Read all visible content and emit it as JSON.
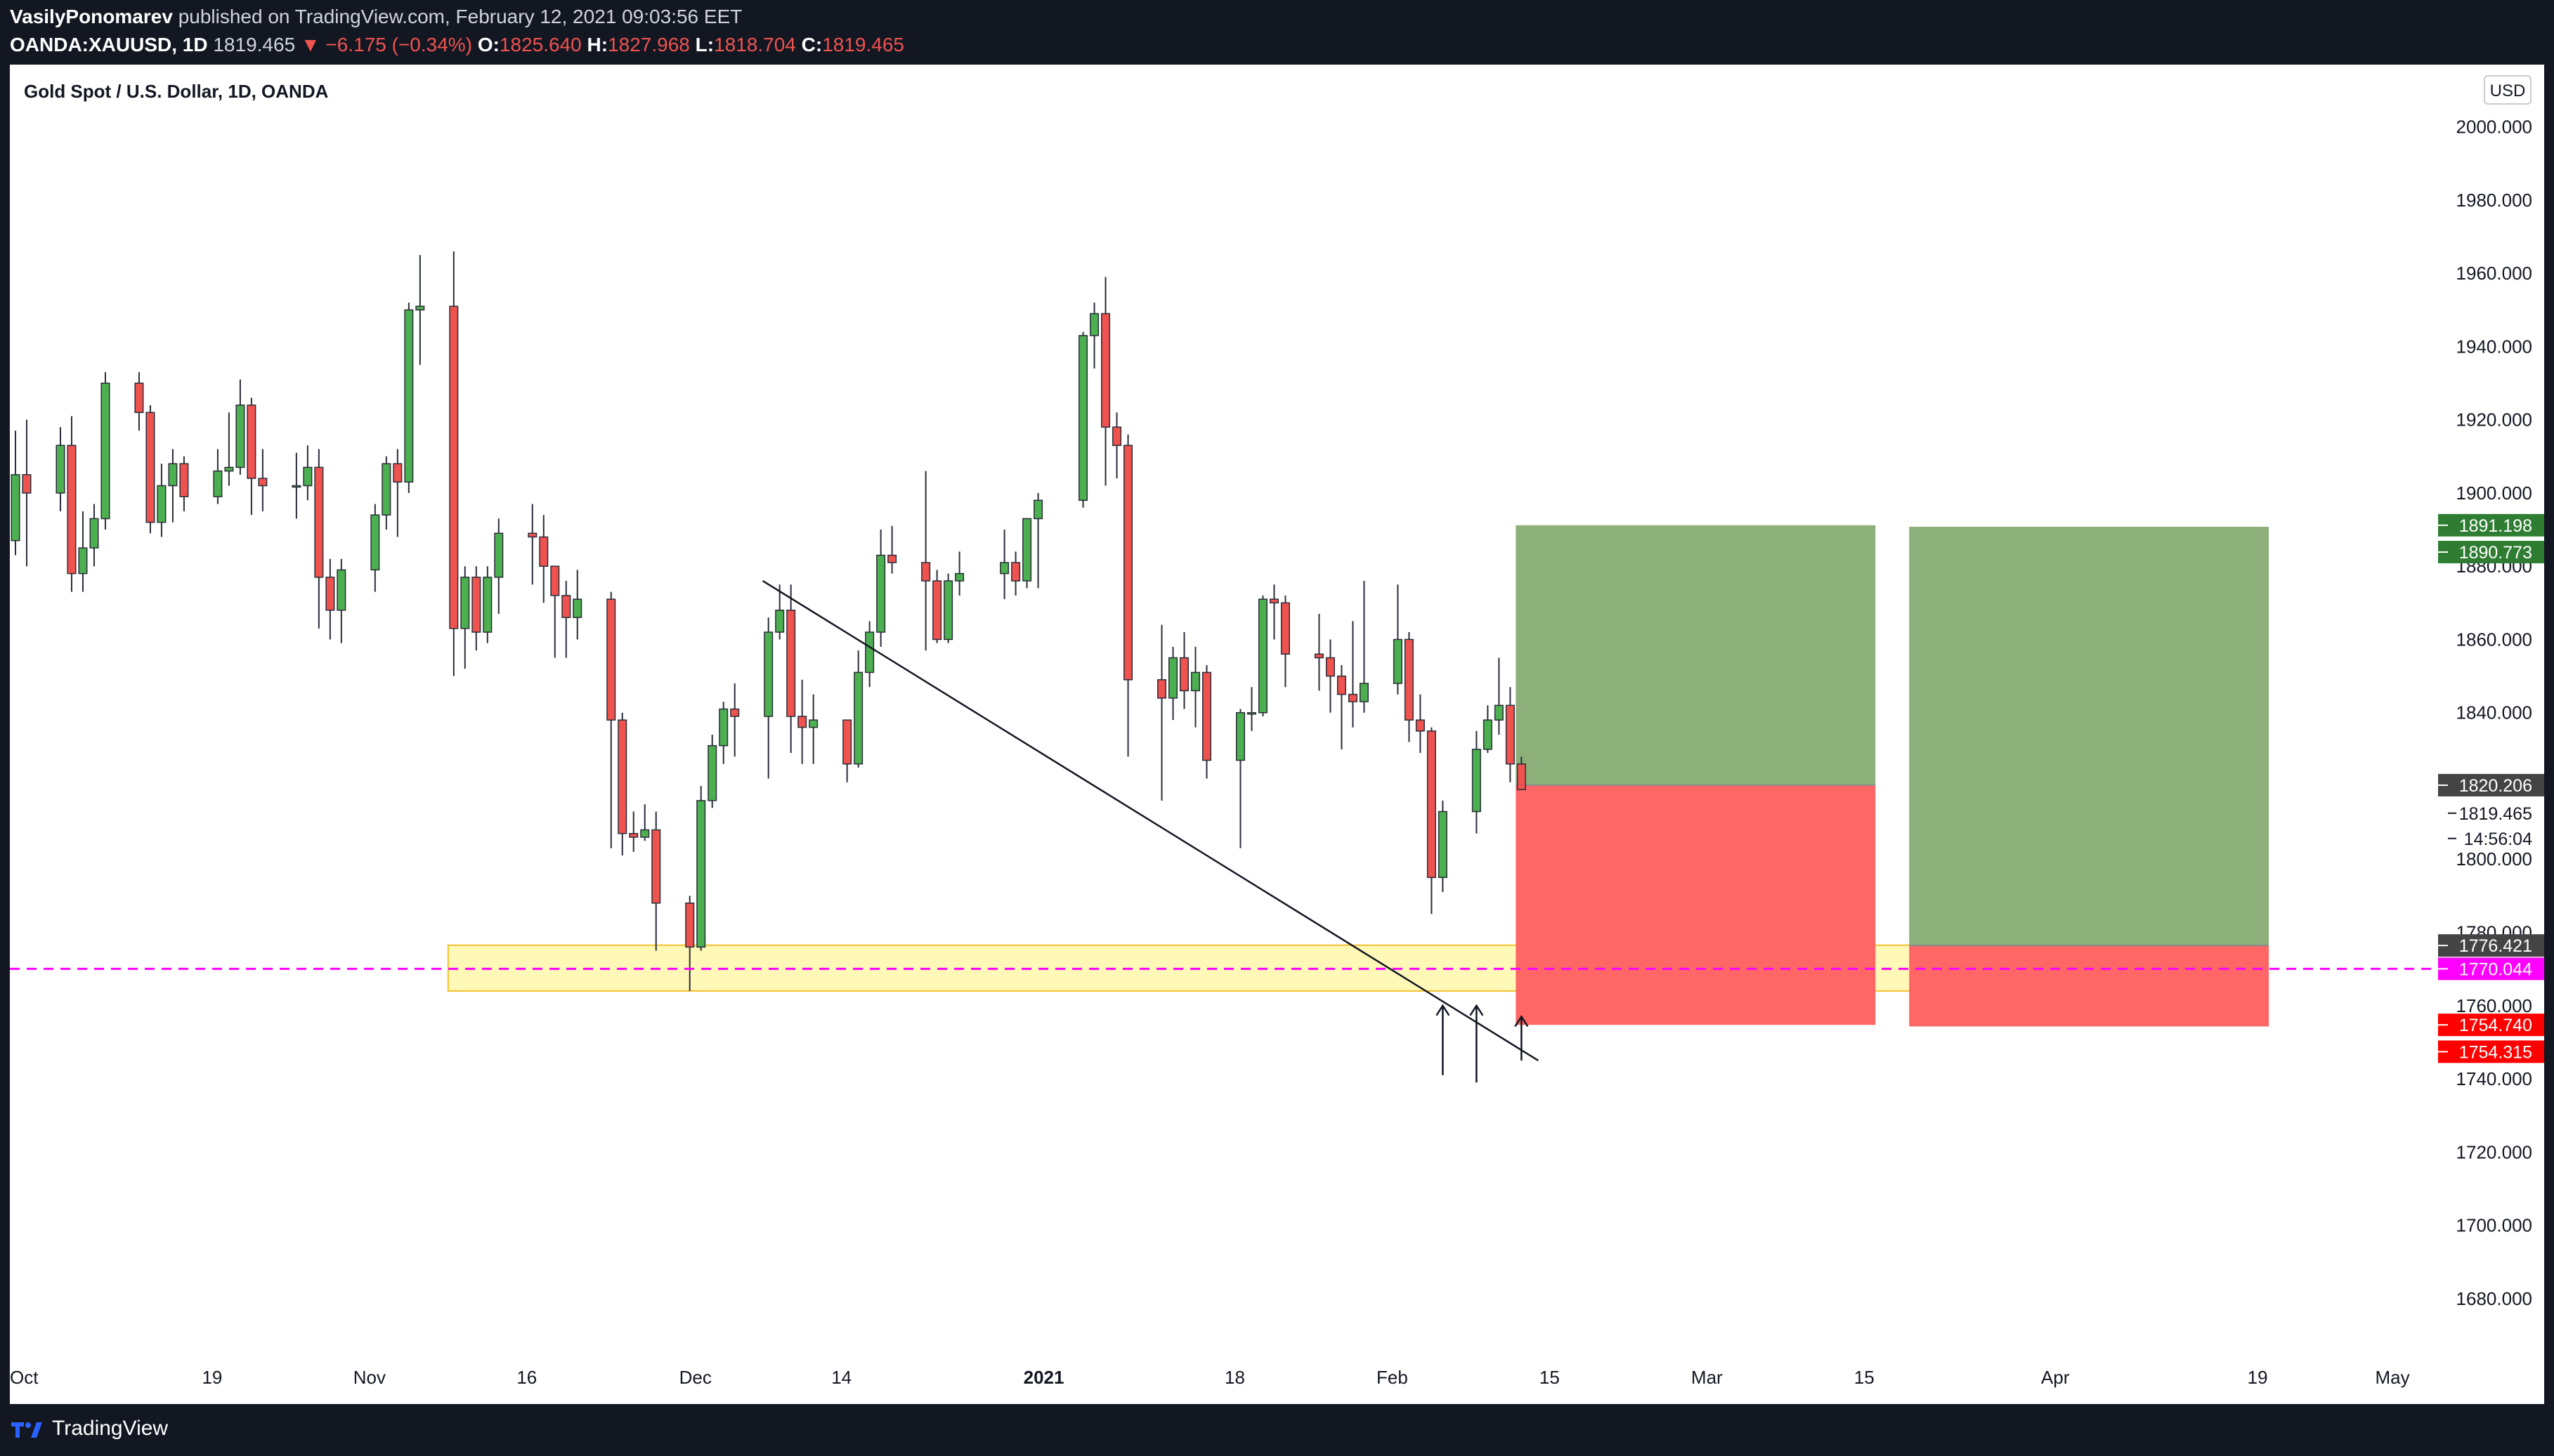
{
  "header": {
    "author": "VasilyPonomarev",
    "published": "published on TradingView.com, February 12, 2021 09:03:56 EET",
    "symbol": "OANDA:XAUUSD, 1D",
    "last": "1819.465",
    "change": "▼ −6.175 (−0.34%)",
    "o_label": "O:",
    "o_val": "1825.640",
    "h_label": "H:",
    "h_val": "1827.968",
    "l_label": "L:",
    "l_val": "1818.704",
    "c_label": "C:",
    "c_val": "1819.465"
  },
  "footer": {
    "brand": "TradingView"
  },
  "colors": {
    "up": "#4caf50",
    "down": "#ef5350",
    "wick": "#2a2e39",
    "profit_zone": "#8db07a",
    "loss_zone": "#ff6666",
    "support_zone": "#fff59d",
    "support_border": "#f2c12e",
    "dashed_level": "#ff00ff"
  },
  "chart_data": {
    "type": "candlestick",
    "title": "Gold Spot / U.S. Dollar, 1D, OANDA",
    "currency_button": "USD",
    "ylim": [
      1665,
      2017
    ],
    "y_ticks": [
      2000,
      1980,
      1960,
      1940,
      1920,
      1900,
      1880,
      1860,
      1840,
      1820,
      1800,
      1780,
      1760,
      1740,
      1720,
      1700,
      1680
    ],
    "y_tick_labels": [
      "2000.000",
      "1980.000",
      "1960.000",
      "1940.000",
      "1920.000",
      "1900.000",
      "1880.000",
      "1860.000",
      "1840.000",
      "1820.000",
      "1800.000",
      "1780.000",
      "1760.000",
      "1740.000",
      "1720.000",
      "1700.000",
      "1680.000"
    ],
    "x_range": [
      "2020-10-01",
      "2021-05-05"
    ],
    "x_ticks": [
      {
        "date": "2020-10-01",
        "label": "Oct"
      },
      {
        "date": "2020-10-19",
        "label": "19"
      },
      {
        "date": "2020-11-02",
        "label": "Nov"
      },
      {
        "date": "2020-11-16",
        "label": "16"
      },
      {
        "date": "2020-12-01",
        "label": "Dec"
      },
      {
        "date": "2020-12-14",
        "label": "14"
      },
      {
        "date": "2021-01-01",
        "label": "2021",
        "bold": true
      },
      {
        "date": "2021-01-18",
        "label": "18"
      },
      {
        "date": "2021-02-01",
        "label": "Feb"
      },
      {
        "date": "2021-02-15",
        "label": "15"
      },
      {
        "date": "2021-03-01",
        "label": "Mar"
      },
      {
        "date": "2021-03-15",
        "label": "15"
      },
      {
        "date": "2021-04-01",
        "label": "Apr"
      },
      {
        "date": "2021-04-19",
        "label": "19"
      },
      {
        "date": "2021-05-01",
        "label": "May"
      }
    ],
    "candles": [
      [
        "2020-10-01",
        1887,
        1917,
        1883,
        1905
      ],
      [
        "2020-10-02",
        1905,
        1920,
        1880,
        1900
      ],
      [
        "2020-10-05",
        1900,
        1918,
        1895,
        1913
      ],
      [
        "2020-10-06",
        1913,
        1921,
        1873,
        1878
      ],
      [
        "2020-10-07",
        1878,
        1895,
        1873,
        1885
      ],
      [
        "2020-10-08",
        1885,
        1897,
        1880,
        1893
      ],
      [
        "2020-10-09",
        1893,
        1933,
        1890,
        1930
      ],
      [
        "2020-10-12",
        1930,
        1933,
        1917,
        1922
      ],
      [
        "2020-10-13",
        1922,
        1924,
        1889,
        1892
      ],
      [
        "2020-10-14",
        1892,
        1908,
        1888,
        1902
      ],
      [
        "2020-10-15",
        1902,
        1912,
        1892,
        1908
      ],
      [
        "2020-10-16",
        1908,
        1910,
        1895,
        1899
      ],
      [
        "2020-10-19",
        1899,
        1912,
        1897,
        1906
      ],
      [
        "2020-10-20",
        1906,
        1922,
        1902,
        1907
      ],
      [
        "2020-10-21",
        1907,
        1931,
        1905,
        1924
      ],
      [
        "2020-10-22",
        1924,
        1926,
        1894,
        1904
      ],
      [
        "2020-10-23",
        1904,
        1912,
        1895,
        1902
      ],
      [
        "2020-10-26",
        1902,
        1911,
        1893,
        1902
      ],
      [
        "2020-10-27",
        1902,
        1913,
        1898,
        1907
      ],
      [
        "2020-10-28",
        1907,
        1912,
        1863,
        1877
      ],
      [
        "2020-10-29",
        1877,
        1882,
        1860,
        1868
      ],
      [
        "2020-10-30",
        1868,
        1882,
        1859,
        1879
      ],
      [
        "2020-11-02",
        1879,
        1897,
        1873,
        1894
      ],
      [
        "2020-11-03",
        1894,
        1910,
        1890,
        1908
      ],
      [
        "2020-11-04",
        1908,
        1912,
        1888,
        1903
      ],
      [
        "2020-11-05",
        1903,
        1952,
        1900,
        1950
      ],
      [
        "2020-11-06",
        1950,
        1965,
        1935,
        1951
      ],
      [
        "2020-11-09",
        1951,
        1966,
        1850,
        1863
      ],
      [
        "2020-11-10",
        1863,
        1880,
        1852,
        1877
      ],
      [
        "2020-11-11",
        1877,
        1880,
        1857,
        1862
      ],
      [
        "2020-11-12",
        1862,
        1880,
        1859,
        1877
      ],
      [
        "2020-11-13",
        1877,
        1893,
        1867,
        1889
      ],
      [
        "2020-11-16",
        1889,
        1897,
        1875,
        1888
      ],
      [
        "2020-11-17",
        1888,
        1894,
        1870,
        1880
      ],
      [
        "2020-11-18",
        1880,
        1880,
        1855,
        1872
      ],
      [
        "2020-11-19",
        1872,
        1876,
        1855,
        1866
      ],
      [
        "2020-11-20",
        1866,
        1879,
        1860,
        1871
      ],
      [
        "2020-11-23",
        1871,
        1873,
        1803,
        1838
      ],
      [
        "2020-11-24",
        1838,
        1840,
        1801,
        1807
      ],
      [
        "2020-11-25",
        1807,
        1813,
        1802,
        1806
      ],
      [
        "2020-11-26",
        1806,
        1815,
        1805,
        1808
      ],
      [
        "2020-11-27",
        1808,
        1813,
        1775,
        1788
      ],
      [
        "2020-11-30",
        1788,
        1790,
        1764,
        1776
      ],
      [
        "2020-12-01",
        1776,
        1820,
        1775,
        1816
      ],
      [
        "2020-12-02",
        1816,
        1834,
        1814,
        1831
      ],
      [
        "2020-12-03",
        1831,
        1843,
        1826,
        1841
      ],
      [
        "2020-12-04",
        1841,
        1848,
        1828,
        1839
      ],
      [
        "2020-12-07",
        1839,
        1866,
        1822,
        1862
      ],
      [
        "2020-12-08",
        1862,
        1875,
        1860,
        1868
      ],
      [
        "2020-12-09",
        1868,
        1875,
        1829,
        1839
      ],
      [
        "2020-12-10",
        1839,
        1849,
        1826,
        1836
      ],
      [
        "2020-12-11",
        1836,
        1845,
        1826,
        1838
      ],
      [
        "2020-12-14",
        1838,
        1838,
        1821,
        1826
      ],
      [
        "2020-12-15",
        1826,
        1857,
        1825,
        1851
      ],
      [
        "2020-12-16",
        1851,
        1865,
        1847,
        1862
      ],
      [
        "2020-12-17",
        1862,
        1890,
        1858,
        1883
      ],
      [
        "2020-12-18",
        1883,
        1891,
        1878,
        1881
      ],
      [
        "2020-12-21",
        1881,
        1906,
        1857,
        1876
      ],
      [
        "2020-12-22",
        1876,
        1879,
        1859,
        1860
      ],
      [
        "2020-12-23",
        1860,
        1878,
        1859,
        1876
      ],
      [
        "2020-12-24",
        1876,
        1884,
        1872,
        1878
      ],
      [
        "2020-12-28",
        1878,
        1890,
        1871,
        1881
      ],
      [
        "2020-12-29",
        1881,
        1884,
        1872,
        1876
      ],
      [
        "2020-12-30",
        1876,
        1893,
        1874,
        1893
      ],
      [
        "2020-12-31",
        1893,
        1900,
        1874,
        1898
      ],
      [
        "2021-01-04",
        1898,
        1944,
        1896,
        1943
      ],
      [
        "2021-01-05",
        1943,
        1952,
        1934,
        1949
      ],
      [
        "2021-01-06",
        1949,
        1959,
        1902,
        1918
      ],
      [
        "2021-01-07",
        1918,
        1922,
        1904,
        1913
      ],
      [
        "2021-01-08",
        1913,
        1916,
        1828,
        1849
      ],
      [
        "2021-01-11",
        1849,
        1864,
        1816,
        1844
      ],
      [
        "2021-01-12",
        1844,
        1858,
        1838,
        1855
      ],
      [
        "2021-01-13",
        1855,
        1862,
        1841,
        1846
      ],
      [
        "2021-01-14",
        1846,
        1858,
        1836,
        1851
      ],
      [
        "2021-01-15",
        1851,
        1853,
        1822,
        1827
      ],
      [
        "2021-01-18",
        1827,
        1841,
        1803,
        1840
      ],
      [
        "2021-01-19",
        1840,
        1847,
        1835,
        1840
      ],
      [
        "2021-01-20",
        1840,
        1872,
        1839,
        1871
      ],
      [
        "2021-01-21",
        1871,
        1875,
        1860,
        1870
      ],
      [
        "2021-01-22",
        1870,
        1872,
        1847,
        1856
      ],
      [
        "2021-01-25",
        1856,
        1867,
        1846,
        1855
      ],
      [
        "2021-01-26",
        1855,
        1860,
        1840,
        1850
      ],
      [
        "2021-01-27",
        1850,
        1853,
        1830,
        1845
      ],
      [
        "2021-01-28",
        1845,
        1865,
        1836,
        1843
      ],
      [
        "2021-01-29",
        1843,
        1876,
        1840,
        1848
      ],
      [
        "2021-02-01",
        1848,
        1875,
        1845,
        1860
      ],
      [
        "2021-02-02",
        1860,
        1862,
        1832,
        1838
      ],
      [
        "2021-02-03",
        1838,
        1845,
        1829,
        1835
      ],
      [
        "2021-02-04",
        1835,
        1836,
        1785,
        1795
      ],
      [
        "2021-02-05",
        1795,
        1816,
        1791,
        1813
      ],
      [
        "2021-02-08",
        1813,
        1835,
        1807,
        1830
      ],
      [
        "2021-02-09",
        1830,
        1842,
        1829,
        1838
      ],
      [
        "2021-02-10",
        1838,
        1855,
        1834,
        1842
      ],
      [
        "2021-02-11",
        1842,
        1847,
        1821,
        1826
      ],
      [
        "2021-02-12",
        1826,
        1828,
        1819,
        1819
      ]
    ],
    "trendline": {
      "from": [
        "2020-12-07",
        1876.0
      ],
      "to": [
        "2021-02-14",
        1745.0
      ]
    },
    "support_zone": {
      "x_from": "2020-11-09",
      "x_to": "2021-03-22",
      "y_from": 1764,
      "y_to": 1776.5
    },
    "positions": [
      {
        "x_from": "2021-02-12",
        "x_to": "2021-03-16",
        "entry": 1820.206,
        "target": 1891.198,
        "stop": 1754.74
      },
      {
        "x_from": "2021-03-19",
        "x_to": "2021-04-20",
        "entry": 1776.421,
        "target": 1890.773,
        "stop": 1754.315
      }
    ],
    "dashed_level": 1770.044,
    "arrows": [
      {
        "date": "2021-02-05",
        "y_from": 1741,
        "y_to": 1760
      },
      {
        "date": "2021-02-08",
        "y_from": 1739,
        "y_to": 1760
      },
      {
        "date": "2021-02-12",
        "y_from": 1745,
        "y_to": 1757
      }
    ],
    "price_labels": [
      {
        "text": "1891.198",
        "value": 1891.198,
        "bg": "#2e7d32",
        "fg": "#ffffff"
      },
      {
        "text": "1890.773",
        "value": 1890.773,
        "bg": "#2e7d32",
        "fg": "#ffffff",
        "offset": 1
      },
      {
        "text": "1820.206",
        "value": 1820.206,
        "bg": "#444444",
        "fg": "#ffffff"
      },
      {
        "text": "1819.465",
        "value": 1819.465,
        "bg": "",
        "fg": "#131722",
        "offset": 1
      },
      {
        "text": "14:56:04",
        "value": 1819.465,
        "bg": "",
        "fg": "#131722",
        "offset": 2
      },
      {
        "text": "1776.421",
        "value": 1776.421,
        "bg": "#444444",
        "fg": "#ffffff"
      },
      {
        "text": "1770.044",
        "value": 1770.044,
        "bg": "#ff00ff",
        "fg": "#ffffff"
      },
      {
        "text": "1754.740",
        "value": 1754.74,
        "bg": "#ff0000",
        "fg": "#ffffff"
      },
      {
        "text": "1754.315",
        "value": 1754.315,
        "bg": "#ff0000",
        "fg": "#ffffff",
        "offset": 1
      }
    ]
  }
}
